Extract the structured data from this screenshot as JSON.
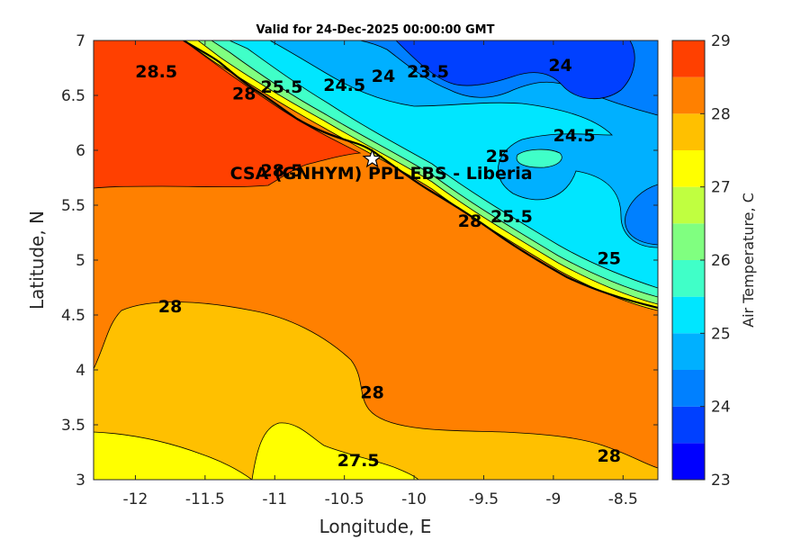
{
  "chart_data": {
    "type": "heatmap",
    "subtype": "filled-contour-map",
    "title": "Valid for 24-Dec-2025 00:00:00 GMT",
    "xlabel": "Longitude, E",
    "ylabel": "Latitude, N",
    "xlim": [
      -12.3,
      -8.25
    ],
    "ylim": [
      3,
      7
    ],
    "x_ticks": [
      "-12",
      "-11.5",
      "-11",
      "-10.5",
      "-10",
      "-9.5",
      "-9",
      "-8.5"
    ],
    "x_tick_values": [
      -12,
      -11.5,
      -11,
      -10.5,
      -10,
      -9.5,
      -9,
      -8.5
    ],
    "y_ticks": [
      "3",
      "3.5",
      "4",
      "4.5",
      "5",
      "5.5",
      "6",
      "6.5",
      "7"
    ],
    "y_tick_values": [
      3,
      3.5,
      4,
      4.5,
      5,
      5.5,
      6,
      6.5,
      7
    ],
    "colorbar": {
      "label": "Air Temperature, C",
      "range": [
        23,
        29
      ],
      "step": 0.5,
      "ticks": [
        "23",
        "24",
        "25",
        "26",
        "27",
        "28",
        "29"
      ],
      "tick_values": [
        23,
        24,
        25,
        26,
        27,
        28,
        29
      ],
      "colors": [
        "#0000ff",
        "#0040ff",
        "#0080ff",
        "#00b0ff",
        "#00e6ff",
        "#40ffc8",
        "#80ff80",
        "#c0ff40",
        "#ffff00",
        "#ffc000",
        "#ff8000",
        "#ff4000"
      ]
    },
    "station": {
      "name": "CSA (GNHYM) PPL EBS  - Liberia",
      "lon": -10.3,
      "lat": 5.92
    },
    "contour_labels": [
      {
        "text": "28.5",
        "lon": -11.85,
        "lat": 6.72
      },
      {
        "text": "28",
        "lon": -11.75,
        "lat": 4.58
      },
      {
        "text": "28",
        "lon": -10.3,
        "lat": 3.8
      },
      {
        "text": "28",
        "lon": -8.6,
        "lat": 3.22
      },
      {
        "text": "27.5",
        "lon": -10.4,
        "lat": 3.18
      },
      {
        "text": "24.5",
        "lon": -10.5,
        "lat": 6.6
      },
      {
        "text": "24",
        "lon": -10.22,
        "lat": 6.68
      },
      {
        "text": "23.5",
        "lon": -9.9,
        "lat": 6.72
      },
      {
        "text": "24",
        "lon": -8.95,
        "lat": 6.78
      },
      {
        "text": "24.5",
        "lon": -8.85,
        "lat": 6.14
      },
      {
        "text": "25",
        "lon": -8.6,
        "lat": 5.02
      },
      {
        "text": "25",
        "lon": -9.4,
        "lat": 5.95
      },
      {
        "text": "25.5",
        "lon": -9.3,
        "lat": 5.4
      },
      {
        "text": "25.5",
        "lon": -10.95,
        "lat": 6.58
      },
      {
        "text": "28",
        "lon": -11.22,
        "lat": 6.52
      },
      {
        "text": "28",
        "lon": -9.6,
        "lat": 5.36
      },
      {
        "text": "28.5",
        "lon": -10.95,
        "lat": 5.82
      }
    ]
  }
}
